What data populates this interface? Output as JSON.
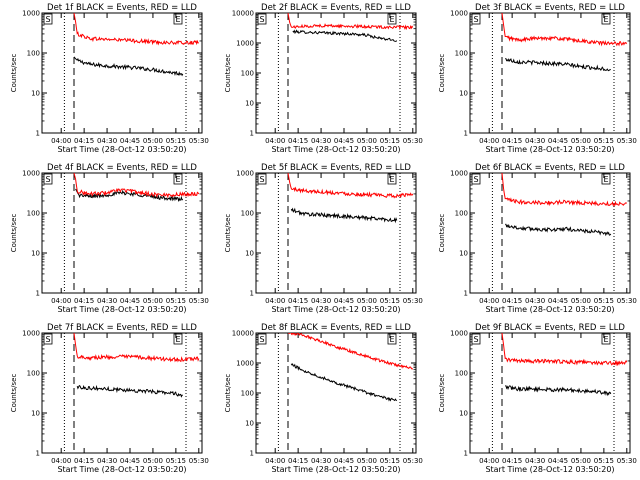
{
  "chart_data": [
    {
      "type": "line",
      "title": "Det 1f BLACK = Events, RED = LLD",
      "xlabel": "Start Time (28-Oct-12 03:50:20)",
      "ylabel": "Counts/sec",
      "xticks": [
        "04:00",
        "04:15",
        "04:30",
        "04:45",
        "05:00",
        "05:15",
        "05:30"
      ],
      "yticks": [
        "1",
        "10",
        "100",
        "1000"
      ],
      "ylim": [
        1,
        1000
      ],
      "xlim": [
        0,
        100
      ],
      "log_y": true,
      "flags": [
        "S",
        "E"
      ],
      "dotted_x": [
        14,
        90
      ],
      "dashed_x": [
        20
      ],
      "series": [
        {
          "color": "#000000",
          "points": [
            [
              20,
              80
            ],
            [
              22,
              65
            ],
            [
              30,
              52
            ],
            [
              40,
              48
            ],
            [
              50,
              45
            ],
            [
              60,
              42
            ],
            [
              70,
              38
            ],
            [
              80,
              33
            ],
            [
              88,
              30
            ]
          ]
        },
        {
          "color": "#ff0000",
          "points": [
            [
              20,
              1000
            ],
            [
              21,
              600
            ],
            [
              22,
              300
            ],
            [
              30,
              230
            ],
            [
              40,
              220
            ],
            [
              50,
              210
            ],
            [
              60,
              200
            ],
            [
              70,
              190
            ],
            [
              80,
              180
            ],
            [
              90,
              180
            ],
            [
              98,
              180
            ]
          ]
        }
      ]
    },
    {
      "type": "line",
      "title": "Det 2f BLACK = Events, RED = LLD",
      "xlabel": "Start Time (28-Oct-12 03:50:20)",
      "ylabel": "Counts/sec",
      "xticks": [
        "04:00",
        "04:15",
        "04:30",
        "04:45",
        "05:00",
        "05:15",
        "05:30"
      ],
      "yticks": [
        "1",
        "10",
        "100",
        "1000",
        "10000"
      ],
      "ylim": [
        1,
        10000
      ],
      "xlim": [
        0,
        100
      ],
      "log_y": true,
      "flags": [
        "S",
        "E"
      ],
      "dotted_x": [
        14,
        90
      ],
      "dashed_x": [
        20
      ],
      "series": [
        {
          "color": "#000000",
          "points": [
            [
              23,
              2400
            ],
            [
              40,
              2200
            ],
            [
              60,
              2000
            ],
            [
              70,
              1800
            ],
            [
              75,
              1500
            ],
            [
              88,
              1200
            ]
          ]
        },
        {
          "color": "#ff0000",
          "points": [
            [
              20,
              10000
            ],
            [
              21,
              5000
            ],
            [
              22,
              3400
            ],
            [
              40,
              3800
            ],
            [
              60,
              3600
            ],
            [
              80,
              3400
            ],
            [
              98,
              3300
            ]
          ]
        }
      ]
    },
    {
      "type": "line",
      "title": "Det 3f BLACK = Events, RED = LLD",
      "xlabel": "Start Time (28-Oct-12 03:50:20)",
      "ylabel": "Counts/sec",
      "xticks": [
        "04:00",
        "04:15",
        "04:30",
        "04:45",
        "05:00",
        "05:15",
        "05:30"
      ],
      "yticks": [
        "1",
        "10",
        "100",
        "1000"
      ],
      "ylim": [
        1,
        1000
      ],
      "xlim": [
        0,
        100
      ],
      "log_y": true,
      "flags": [
        "S",
        "E"
      ],
      "dotted_x": [
        14,
        90
      ],
      "dashed_x": [
        20
      ],
      "series": [
        {
          "color": "#000000",
          "points": [
            [
              22,
              70
            ],
            [
              30,
              60
            ],
            [
              40,
              58
            ],
            [
              50,
              55
            ],
            [
              60,
              52
            ],
            [
              70,
              45
            ],
            [
              80,
              42
            ],
            [
              88,
              38
            ]
          ]
        },
        {
          "color": "#ff0000",
          "points": [
            [
              20,
              1000
            ],
            [
              21,
              500
            ],
            [
              22,
              250
            ],
            [
              30,
              210
            ],
            [
              40,
              230
            ],
            [
              50,
              240
            ],
            [
              60,
              220
            ],
            [
              70,
              200
            ],
            [
              80,
              180
            ],
            [
              90,
              170
            ],
            [
              98,
              180
            ]
          ]
        }
      ]
    },
    {
      "type": "line",
      "title": "Det 4f BLACK = Events, RED = LLD",
      "xlabel": "Start Time (28-Oct-12 03:50:20)",
      "ylabel": "Counts/sec",
      "xticks": [
        "04:00",
        "04:15",
        "04:30",
        "04:45",
        "05:00",
        "05:15",
        "05:30"
      ],
      "yticks": [
        "1",
        "10",
        "100",
        "1000"
      ],
      "ylim": [
        1,
        1000
      ],
      "xlim": [
        0,
        100
      ],
      "log_y": true,
      "flags": [
        "S",
        "E"
      ],
      "dotted_x": [
        14,
        90
      ],
      "dashed_x": [
        20
      ],
      "series": [
        {
          "color": "#000000",
          "points": [
            [
              21,
              400
            ],
            [
              23,
              280
            ],
            [
              30,
              260
            ],
            [
              40,
              280
            ],
            [
              50,
              320
            ],
            [
              60,
              290
            ],
            [
              70,
              250
            ],
            [
              80,
              230
            ],
            [
              88,
              220
            ]
          ]
        },
        {
          "color": "#ff0000",
          "points": [
            [
              20,
              1000
            ],
            [
              21,
              700
            ],
            [
              22,
              350
            ],
            [
              30,
              300
            ],
            [
              40,
              320
            ],
            [
              50,
              380
            ],
            [
              60,
              330
            ],
            [
              70,
              290
            ],
            [
              80,
              280
            ],
            [
              90,
              300
            ],
            [
              98,
              300
            ]
          ]
        }
      ]
    },
    {
      "type": "line",
      "title": "Det 5f BLACK = Events, RED = LLD",
      "xlabel": "Start Time (28-Oct-12 03:50:20)",
      "ylabel": "Counts/sec",
      "xticks": [
        "04:00",
        "04:15",
        "04:30",
        "04:45",
        "05:00",
        "05:15",
        "05:30"
      ],
      "yticks": [
        "1",
        "10",
        "100",
        "1000"
      ],
      "ylim": [
        1,
        1000
      ],
      "xlim": [
        0,
        100
      ],
      "log_y": true,
      "flags": [
        "S",
        "E"
      ],
      "dotted_x": [
        14,
        90
      ],
      "dashed_x": [
        20
      ],
      "series": [
        {
          "color": "#000000",
          "points": [
            [
              22,
              120
            ],
            [
              30,
              95
            ],
            [
              40,
              90
            ],
            [
              50,
              85
            ],
            [
              60,
              80
            ],
            [
              70,
              75
            ],
            [
              80,
              70
            ],
            [
              88,
              65
            ]
          ]
        },
        {
          "color": "#ff0000",
          "points": [
            [
              20,
              1000
            ],
            [
              21,
              600
            ],
            [
              22,
              400
            ],
            [
              30,
              360
            ],
            [
              40,
              340
            ],
            [
              50,
              320
            ],
            [
              60,
              300
            ],
            [
              70,
              290
            ],
            [
              80,
              270
            ],
            [
              90,
              270
            ],
            [
              98,
              300
            ]
          ]
        }
      ]
    },
    {
      "type": "line",
      "title": "Det 6f BLACK = Events, RED = LLD",
      "xlabel": "Start Time (28-Oct-12 03:50:20)",
      "ylabel": "Counts/sec",
      "xticks": [
        "04:00",
        "04:15",
        "04:30",
        "04:45",
        "05:00",
        "05:15",
        "05:30"
      ],
      "yticks": [
        "1",
        "10",
        "100",
        "1000"
      ],
      "ylim": [
        1,
        1000
      ],
      "xlim": [
        0,
        100
      ],
      "log_y": true,
      "flags": [
        "S",
        "E"
      ],
      "dotted_x": [
        14,
        90
      ],
      "dashed_x": [
        20
      ],
      "series": [
        {
          "color": "#000000",
          "points": [
            [
              22,
              50
            ],
            [
              30,
              42
            ],
            [
              40,
              40
            ],
            [
              50,
              38
            ],
            [
              60,
              40
            ],
            [
              70,
              36
            ],
            [
              80,
              33
            ],
            [
              88,
              30
            ]
          ]
        },
        {
          "color": "#ff0000",
          "points": [
            [
              20,
              1000
            ],
            [
              21,
              400
            ],
            [
              22,
              220
            ],
            [
              30,
              190
            ],
            [
              40,
              185
            ],
            [
              50,
              180
            ],
            [
              60,
              190
            ],
            [
              70,
              180
            ],
            [
              80,
              170
            ],
            [
              90,
              170
            ],
            [
              98,
              175
            ]
          ]
        }
      ]
    },
    {
      "type": "line",
      "title": "Det 7f BLACK = Events, RED = LLD",
      "xlabel": "Start Time (28-Oct-12 03:50:20)",
      "ylabel": "Counts/sec",
      "xticks": [
        "04:00",
        "04:15",
        "04:30",
        "04:45",
        "05:00",
        "05:15",
        "05:30"
      ],
      "yticks": [
        "1",
        "10",
        "100",
        "1000"
      ],
      "ylim": [
        1,
        1000
      ],
      "xlim": [
        0,
        100
      ],
      "log_y": true,
      "flags": [
        "S",
        "E"
      ],
      "dotted_x": [
        14,
        90
      ],
      "dashed_x": [
        20
      ],
      "series": [
        {
          "color": "#000000",
          "points": [
            [
              22,
              45
            ],
            [
              30,
              42
            ],
            [
              40,
              40
            ],
            [
              50,
              38
            ],
            [
              60,
              36
            ],
            [
              70,
              34
            ],
            [
              80,
              32
            ],
            [
              88,
              28
            ]
          ]
        },
        {
          "color": "#ff0000",
          "points": [
            [
              20,
              1000
            ],
            [
              21,
              500
            ],
            [
              22,
              260
            ],
            [
              30,
              240
            ],
            [
              40,
              250
            ],
            [
              50,
              255
            ],
            [
              60,
              250
            ],
            [
              70,
              230
            ],
            [
              80,
              220
            ],
            [
              90,
              215
            ],
            [
              98,
              230
            ]
          ]
        }
      ]
    },
    {
      "type": "line",
      "title": "Det 8f BLACK = Events, RED = LLD",
      "xlabel": "Start Time (28-Oct-12 03:50:20)",
      "ylabel": "Counts/sec",
      "xticks": [
        "04:00",
        "04:15",
        "04:30",
        "04:45",
        "05:00",
        "05:15",
        "05:30"
      ],
      "yticks": [
        "1",
        "10",
        "100",
        "1000",
        "10000"
      ],
      "ylim": [
        1,
        10000
      ],
      "xlim": [
        0,
        100
      ],
      "log_y": true,
      "flags": [
        "S",
        "E"
      ],
      "dotted_x": [
        14,
        90
      ],
      "dashed_x": [
        20
      ],
      "series": [
        {
          "color": "#000000",
          "points": [
            [
              22,
              900
            ],
            [
              30,
              550
            ],
            [
              40,
              350
            ],
            [
              50,
              220
            ],
            [
              60,
              150
            ],
            [
              70,
              100
            ],
            [
              80,
              70
            ],
            [
              88,
              55
            ]
          ]
        },
        {
          "color": "#ff0000",
          "points": [
            [
              20,
              10000
            ],
            [
              28,
              9000
            ],
            [
              40,
              5500
            ],
            [
              50,
              3500
            ],
            [
              60,
              2400
            ],
            [
              70,
              1600
            ],
            [
              80,
              1100
            ],
            [
              90,
              800
            ],
            [
              98,
              650
            ]
          ]
        }
      ]
    },
    {
      "type": "line",
      "title": "Det 9f BLACK = Events, RED = LLD",
      "xlabel": "Start Time (28-Oct-12 03:50:20)",
      "ylabel": "Counts/sec",
      "xticks": [
        "04:00",
        "04:15",
        "04:30",
        "04:45",
        "05:00",
        "05:15",
        "05:30"
      ],
      "yticks": [
        "1",
        "10",
        "100",
        "1000"
      ],
      "ylim": [
        1,
        1000
      ],
      "xlim": [
        0,
        100
      ],
      "log_y": true,
      "flags": [
        "S",
        "E"
      ],
      "dotted_x": [
        14,
        90
      ],
      "dashed_x": [
        20
      ],
      "series": [
        {
          "color": "#000000",
          "points": [
            [
              22,
              45
            ],
            [
              30,
              40
            ],
            [
              40,
              40
            ],
            [
              50,
              38
            ],
            [
              60,
              38
            ],
            [
              70,
              36
            ],
            [
              80,
              34
            ],
            [
              88,
              30
            ]
          ]
        },
        {
          "color": "#ff0000",
          "points": [
            [
              20,
              1000
            ],
            [
              21,
              500
            ],
            [
              22,
              220
            ],
            [
              30,
              200
            ],
            [
              40,
              195
            ],
            [
              50,
              200
            ],
            [
              60,
              190
            ],
            [
              70,
              185
            ],
            [
              80,
              180
            ],
            [
              90,
              175
            ],
            [
              98,
              185
            ]
          ]
        }
      ]
    }
  ]
}
